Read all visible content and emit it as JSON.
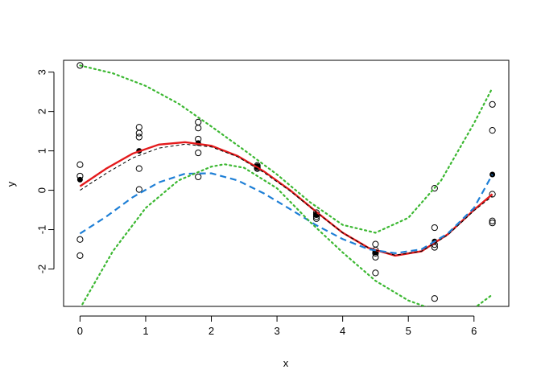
{
  "chart_data": {
    "type": "scatter",
    "title": "",
    "xlabel": "x",
    "ylabel": "y",
    "xlim": [
      -0.25,
      6.53
    ],
    "ylim": [
      -2.95,
      3.3
    ],
    "x_ticks": [
      0,
      1,
      2,
      3,
      4,
      5,
      6
    ],
    "y_ticks": [
      -2,
      -1,
      0,
      1,
      2,
      3
    ],
    "x_tick_labels": [
      "0",
      "1",
      "2",
      "3",
      "4",
      "5",
      "6"
    ],
    "y_tick_labels": [
      "-2",
      "-1",
      "0",
      "1",
      "2",
      "3"
    ],
    "grid": false,
    "legend": "none",
    "series": [
      {
        "kind": "points-open",
        "color": "#000000",
        "points": [
          [
            0,
            3.17
          ],
          [
            0,
            0.65
          ],
          [
            0,
            0.36
          ],
          [
            0,
            -1.25
          ],
          [
            0,
            -1.66
          ],
          [
            0.9,
            1.6
          ],
          [
            0.9,
            1.45
          ],
          [
            0.9,
            1.35
          ],
          [
            0.9,
            0.55
          ],
          [
            0.9,
            0.02
          ],
          [
            1.8,
            1.73
          ],
          [
            1.8,
            1.58
          ],
          [
            1.8,
            1.3
          ],
          [
            1.8,
            0.95
          ],
          [
            1.8,
            0.34
          ],
          [
            2.7,
            0.63
          ],
          [
            2.7,
            0.6
          ],
          [
            2.7,
            0.57
          ],
          [
            2.7,
            0.55
          ],
          [
            3.6,
            -0.57
          ],
          [
            3.6,
            -0.62
          ],
          [
            3.6,
            -0.67
          ],
          [
            3.6,
            -0.72
          ],
          [
            4.5,
            -1.37
          ],
          [
            4.5,
            -1.52
          ],
          [
            4.5,
            -1.6
          ],
          [
            4.5,
            -1.7
          ],
          [
            4.5,
            -2.1
          ],
          [
            5.4,
            0.05
          ],
          [
            5.4,
            -0.95
          ],
          [
            5.4,
            -1.38
          ],
          [
            5.4,
            -1.45
          ],
          [
            5.4,
            -2.75
          ],
          [
            6.28,
            2.18
          ],
          [
            6.28,
            1.52
          ],
          [
            6.28,
            -0.1
          ],
          [
            6.28,
            -0.78
          ],
          [
            6.28,
            -0.83
          ]
        ]
      },
      {
        "kind": "points-filled",
        "color": "#000000",
        "points": [
          [
            0,
            0.27
          ],
          [
            0.9,
            1.0
          ],
          [
            1.8,
            1.2
          ],
          [
            2.7,
            0.6
          ],
          [
            3.6,
            -0.62
          ],
          [
            4.5,
            -1.58
          ],
          [
            5.4,
            -1.3
          ],
          [
            6.28,
            0.4
          ]
        ]
      },
      {
        "kind": "line-solid",
        "color": "#e41a1c",
        "points": [
          [
            0,
            0.1
          ],
          [
            0.4,
            0.55
          ],
          [
            0.8,
            0.93
          ],
          [
            1.2,
            1.16
          ],
          [
            1.6,
            1.22
          ],
          [
            2.0,
            1.13
          ],
          [
            2.4,
            0.87
          ],
          [
            2.8,
            0.48
          ],
          [
            3.2,
            0.0
          ],
          [
            3.6,
            -0.55
          ],
          [
            4.0,
            -1.08
          ],
          [
            4.4,
            -1.47
          ],
          [
            4.8,
            -1.66
          ],
          [
            5.2,
            -1.55
          ],
          [
            5.6,
            -1.12
          ],
          [
            6.0,
            -0.5
          ],
          [
            6.28,
            -0.1
          ]
        ]
      },
      {
        "kind": "line-dashed-thin",
        "color": "#000000",
        "points": [
          [
            0,
            0.0
          ],
          [
            0.4,
            0.43
          ],
          [
            0.8,
            0.82
          ],
          [
            1.2,
            1.07
          ],
          [
            1.6,
            1.17
          ],
          [
            2.0,
            1.1
          ],
          [
            2.4,
            0.85
          ],
          [
            2.8,
            0.45
          ],
          [
            3.2,
            -0.02
          ],
          [
            3.6,
            -0.56
          ],
          [
            4.0,
            -1.08
          ],
          [
            4.4,
            -1.47
          ],
          [
            4.8,
            -1.65
          ],
          [
            5.2,
            -1.55
          ],
          [
            5.6,
            -1.14
          ],
          [
            6.0,
            -0.52
          ],
          [
            6.28,
            -0.15
          ]
        ]
      },
      {
        "kind": "line-dashed",
        "color": "#1e7fd6",
        "points": [
          [
            0,
            -1.1
          ],
          [
            0.4,
            -0.67
          ],
          [
            0.8,
            -0.18
          ],
          [
            1.2,
            0.2
          ],
          [
            1.6,
            0.42
          ],
          [
            2.0,
            0.43
          ],
          [
            2.4,
            0.25
          ],
          [
            2.8,
            -0.08
          ],
          [
            3.2,
            -0.48
          ],
          [
            3.6,
            -0.89
          ],
          [
            4.0,
            -1.24
          ],
          [
            4.4,
            -1.5
          ],
          [
            4.8,
            -1.6
          ],
          [
            5.2,
            -1.5
          ],
          [
            5.6,
            -1.1
          ],
          [
            6.0,
            -0.45
          ],
          [
            6.28,
            0.4
          ]
        ]
      },
      {
        "kind": "line-dotted",
        "color": "#3cb832",
        "points": [
          [
            0,
            3.17
          ],
          [
            0.5,
            2.97
          ],
          [
            1.0,
            2.65
          ],
          [
            1.5,
            2.2
          ],
          [
            2.0,
            1.62
          ],
          [
            2.5,
            1.02
          ],
          [
            3.0,
            0.4
          ],
          [
            3.5,
            -0.3
          ],
          [
            4.0,
            -0.88
          ],
          [
            4.5,
            -1.08
          ],
          [
            5.0,
            -0.7
          ],
          [
            5.5,
            0.25
          ],
          [
            6.0,
            1.7
          ],
          [
            6.28,
            2.6
          ]
        ]
      },
      {
        "kind": "line-dotted",
        "color": "#3cb832",
        "points": [
          [
            0,
            -3.0
          ],
          [
            0.5,
            -1.55
          ],
          [
            1.0,
            -0.45
          ],
          [
            1.5,
            0.25
          ],
          [
            2.0,
            0.6
          ],
          [
            2.2,
            0.66
          ],
          [
            2.5,
            0.57
          ],
          [
            3.0,
            0.05
          ],
          [
            3.5,
            -0.8
          ],
          [
            4.0,
            -1.58
          ],
          [
            4.5,
            -2.3
          ],
          [
            5.0,
            -2.8
          ],
          [
            5.5,
            -3.1
          ],
          [
            6.0,
            -3.0
          ],
          [
            6.28,
            -2.65
          ]
        ]
      }
    ]
  }
}
